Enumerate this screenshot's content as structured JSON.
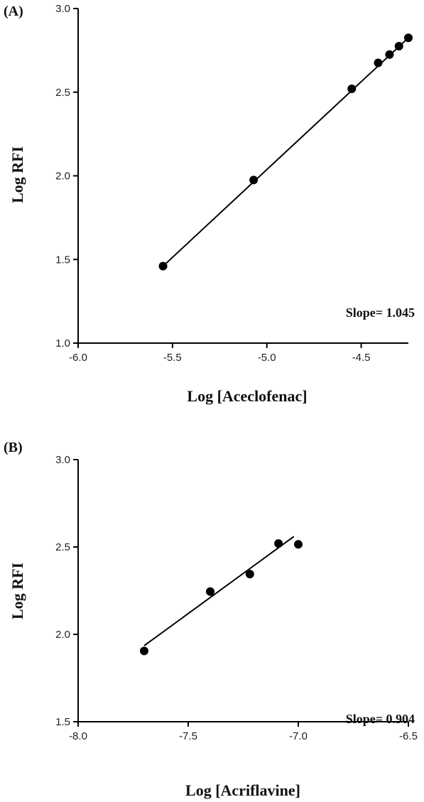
{
  "chart_data": [
    {
      "type": "scatter",
      "panel_label": "(A)",
      "xlabel": "Log [Aceclofenac]",
      "ylabel": "Log RFI",
      "xlim": [
        -6.0,
        -4.25
      ],
      "ylim": [
        1.0,
        3.0
      ],
      "xticks": [
        "-6.0",
        "-5.5",
        "-5.0",
        "-4.5"
      ],
      "xtick_values": [
        -6.0,
        -5.5,
        -5.0,
        -4.5
      ],
      "yticks": [
        "1.0",
        "1.5",
        "2.0",
        "2.5",
        "3.0"
      ],
      "ytick_values": [
        1.0,
        1.5,
        2.0,
        2.5,
        3.0
      ],
      "x": [
        -5.55,
        -5.07,
        -4.55,
        -4.41,
        -4.35,
        -4.3,
        -4.25
      ],
      "y": [
        1.46,
        1.975,
        2.52,
        2.675,
        2.725,
        2.775,
        2.825
      ],
      "fit_line": {
        "x": [
          -5.55,
          -4.25
        ],
        "y": [
          1.46,
          2.825
        ]
      },
      "annotation": "Slope= 1.045",
      "grid": false
    },
    {
      "type": "scatter",
      "panel_label": "(B)",
      "xlabel": "Log [Acriflavine]",
      "ylabel": "Log RFI",
      "xlim": [
        -8.0,
        -6.5
      ],
      "ylim": [
        1.5,
        3.0
      ],
      "xticks": [
        "-8.0",
        "-7.5",
        "-7.0",
        "-6.5"
      ],
      "xtick_values": [
        -8.0,
        -7.5,
        -7.0,
        -6.5
      ],
      "yticks": [
        "1.5",
        "2.0",
        "2.5",
        "3.0"
      ],
      "ytick_values": [
        1.5,
        2.0,
        2.5,
        3.0
      ],
      "x": [
        -7.7,
        -7.4,
        -7.22,
        -7.09,
        -7.0
      ],
      "y": [
        1.905,
        2.245,
        2.345,
        2.52,
        2.515
      ],
      "fit_line": {
        "x": [
          -7.7,
          -7.02
        ],
        "y": [
          1.935,
          2.56
        ]
      },
      "annotation": "Slope= 0.904",
      "grid": false
    }
  ]
}
